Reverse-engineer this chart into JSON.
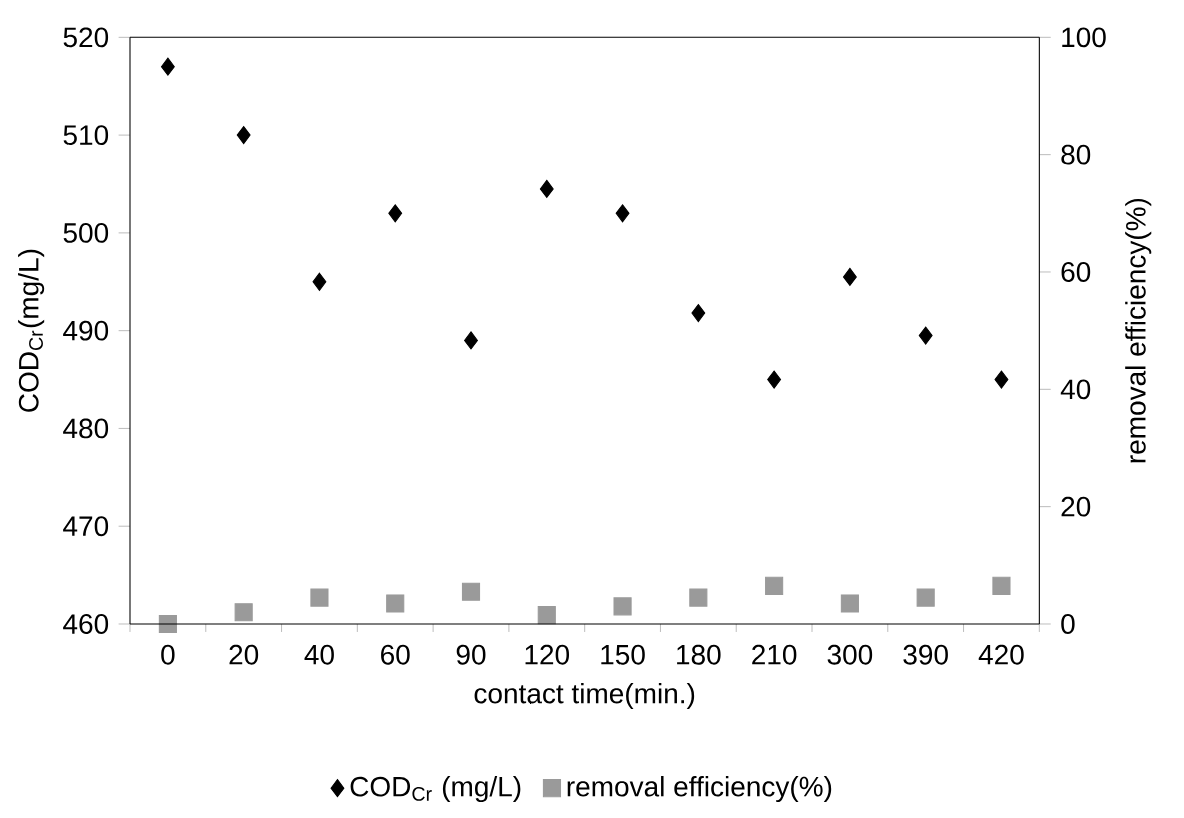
{
  "chart_data": {
    "type": "scatter",
    "categories": [
      "0",
      "20",
      "40",
      "60",
      "90",
      "120",
      "150",
      "180",
      "210",
      "300",
      "390",
      "420"
    ],
    "xlabel": "contact time(min.)",
    "ylabel": "COD$_{Cr}$(mg/L)",
    "y2label": "removal efficiency(%)",
    "ylim": [
      460,
      520
    ],
    "yticks": [
      460,
      470,
      480,
      490,
      500,
      510,
      520
    ],
    "y2lim": [
      0,
      100
    ],
    "y2ticks": [
      0,
      20,
      40,
      60,
      80,
      100
    ],
    "legend": "bottom",
    "series": [
      {
        "name": "COD$_{Cr}$ (mg/L)",
        "color": "#000000",
        "marker": "diamond",
        "values": [
          517,
          510,
          495,
          502,
          489,
          504.5,
          502,
          491.8,
          485,
          495.5,
          489.5,
          485
        ]
      },
      {
        "name": "removal efficiency(%)",
        "color": "#9a9a9a",
        "marker": "square",
        "axis": "y2",
        "values": [
          0,
          2,
          4.5,
          3.5,
          5.5,
          1.5,
          3,
          4.5,
          6.5,
          3.5,
          4.5,
          6.5
        ]
      }
    ]
  }
}
